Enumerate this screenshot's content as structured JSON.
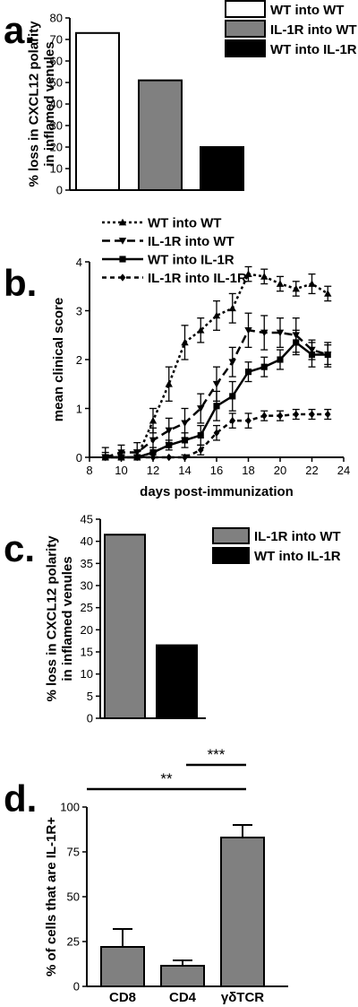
{
  "panels": {
    "a": {
      "letter": "a."
    },
    "b": {
      "letter": "b."
    },
    "c": {
      "letter": "c."
    },
    "d": {
      "letter": "d."
    }
  },
  "chart_data": [
    {
      "id": "a",
      "type": "bar",
      "ylabel_lines": [
        "% loss in CXCL12 polarity",
        "in inflamed venules"
      ],
      "ylim": [
        0,
        80
      ],
      "yticks": [
        0,
        10,
        20,
        30,
        40,
        50,
        60,
        70,
        80
      ],
      "categories": [
        "WT into WT",
        "IL-1R into WT",
        "WT into IL-1R"
      ],
      "values": [
        73,
        51,
        20
      ],
      "colors": [
        "#ffffff",
        "#808080",
        "#000000"
      ],
      "legend": [
        "WT into WT",
        "IL-1R into WT",
        "WT into IL-1R"
      ]
    },
    {
      "id": "b",
      "type": "line",
      "xlabel": "days post-immunization",
      "ylabel": "mean clinical score",
      "xlim": [
        8,
        24
      ],
      "ylim": [
        0,
        4
      ],
      "xticks": [
        8,
        10,
        12,
        14,
        16,
        18,
        20,
        22,
        24
      ],
      "yticks": [
        0,
        1,
        2,
        3,
        4
      ],
      "x": [
        9,
        10,
        11,
        12,
        13,
        14,
        15,
        16,
        17,
        18,
        19,
        20,
        21,
        22,
        23
      ],
      "series": [
        {
          "name": "WT into WT",
          "marker": "triangle-up",
          "dash": "3,3",
          "values": [
            0,
            0,
            0,
            0.75,
            1.5,
            2.35,
            2.6,
            2.9,
            3.05,
            3.75,
            3.7,
            3.55,
            3.45,
            3.55,
            3.35
          ],
          "errors": [
            0.1,
            0.1,
            0.15,
            0.25,
            0.35,
            0.35,
            0.25,
            0.3,
            0.3,
            0.15,
            0.15,
            0.15,
            0.15,
            0.2,
            0.15
          ]
        },
        {
          "name": "IL-1R into WT",
          "marker": "triangle-down",
          "dash": "9,5",
          "values": [
            0,
            0.1,
            0.1,
            0.35,
            0.55,
            0.7,
            1.0,
            1.5,
            1.95,
            2.6,
            2.55,
            2.55,
            2.5,
            2.2,
            2.1
          ],
          "errors": [
            0.2,
            0.15,
            0.2,
            0.25,
            0.25,
            0.3,
            0.3,
            0.35,
            0.3,
            0.35,
            0.35,
            0.3,
            0.35,
            0.2,
            0.25
          ]
        },
        {
          "name": "WT into IL-1R",
          "marker": "square",
          "dash": "",
          "values": [
            0,
            0,
            0,
            0.1,
            0.25,
            0.35,
            0.45,
            1.05,
            1.25,
            1.75,
            1.85,
            2.0,
            2.35,
            2.1,
            2.1
          ],
          "errors": [
            0.05,
            0.05,
            0.05,
            0.1,
            0.1,
            0.15,
            0.2,
            0.3,
            0.3,
            0.2,
            0.2,
            0.2,
            0.25,
            0.25,
            0.2
          ]
        },
        {
          "name": "IL-1R into IL-1R",
          "marker": "diamond",
          "dash": "5,4",
          "values": [
            0,
            0,
            0,
            0,
            0,
            0,
            0.15,
            0.5,
            0.75,
            0.75,
            0.85,
            0.85,
            0.88,
            0.88,
            0.88
          ],
          "errors": [
            0,
            0,
            0,
            0,
            0,
            0.05,
            0.1,
            0.15,
            0.15,
            0.15,
            0.1,
            0.1,
            0.1,
            0.1,
            0.1
          ]
        }
      ]
    },
    {
      "id": "c",
      "type": "bar",
      "ylabel_lines": [
        "% loss in CXCL12 polarity",
        "in inflamed venules"
      ],
      "ylim": [
        0,
        45
      ],
      "yticks": [
        0,
        5,
        10,
        15,
        20,
        25,
        30,
        35,
        40,
        45
      ],
      "categories": [
        "IL-1R into WT",
        "WT into IL-1R"
      ],
      "values": [
        41.5,
        16.5
      ],
      "colors": [
        "#808080",
        "#000000"
      ],
      "legend": [
        "IL-1R into WT",
        "WT into IL-1R"
      ]
    },
    {
      "id": "d",
      "type": "bar",
      "ylabel": "% of cells that are IL-1R+",
      "ylim": [
        0,
        100
      ],
      "yticks": [
        0,
        25,
        50,
        75,
        100
      ],
      "categories": [
        "CD8",
        "CD4",
        "γδTCR"
      ],
      "values": [
        22,
        11.5,
        83
      ],
      "errors": [
        10,
        3,
        7
      ],
      "colors": [
        "#808080",
        "#808080",
        "#808080"
      ],
      "significance": [
        {
          "from": 0,
          "to": 2,
          "label": "**"
        },
        {
          "from": 1,
          "to": 2,
          "label": "***"
        }
      ]
    }
  ]
}
